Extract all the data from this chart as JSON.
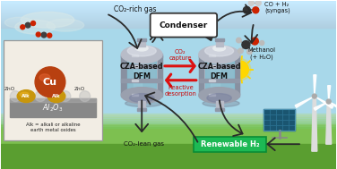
{
  "sky_color": "#A8D8EA",
  "sky_top": "#C5E8F5",
  "grass_color": "#7DC050",
  "grass_dark": "#5A9E30",
  "inset_bg": "#F2EDE4",
  "inset_border": "#999999",
  "label_co2_rich": "CO₂-rich gas",
  "label_co2_lean": "CO₂-lean gas",
  "label_co2_capture": "CO₂\ncapture",
  "label_reactive_des": "Reactive\ndesorption",
  "label_condenser": "Condenser",
  "label_syngas": "CO + H₂\n(syngas)",
  "label_methanol": "Methanol\n(+ H₂O)",
  "label_dfm1": "CZA-based\nDFM",
  "label_dfm2": "CZA-based\nDFM",
  "label_renewable": "Renewable H₂",
  "arrow_dark": "#2A2A2A",
  "arrow_red": "#DD1111",
  "renewable_box": "#1DB954",
  "renewable_border": "#0A8C35",
  "condenser_fill": "#FFFFFF",
  "condenser_border": "#333333",
  "reactor_body": "#B8BCC8",
  "reactor_shine": "#E0E4EC",
  "reactor_shadow": "#8890A0",
  "reactor_glass": "#7FBDD0",
  "reactor_rim": "#9098A8"
}
